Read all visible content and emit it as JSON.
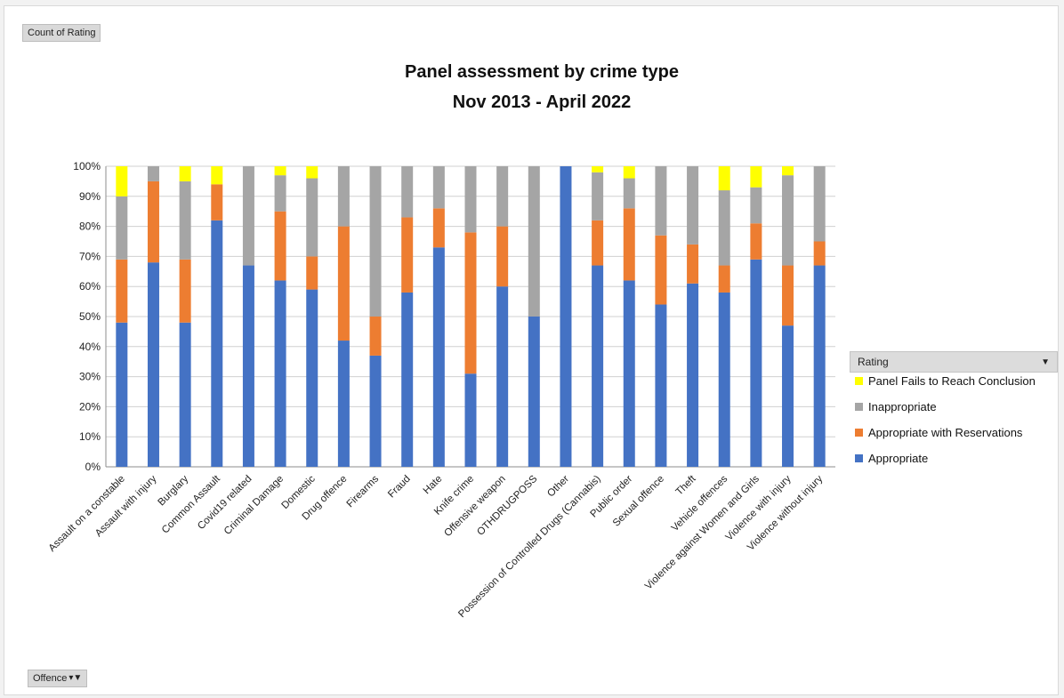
{
  "pivot": {
    "count_label": "Count of Rating",
    "offence_label": "Offence",
    "rating_label": "Rating",
    "filter_icon": "filter-icon",
    "dropdown_icon": "dropdown-arrow-icon"
  },
  "chart_data": {
    "type": "bar",
    "stacked": "percent",
    "title": "Panel assessment by crime type",
    "subtitle": "Nov 2013 - April 2022",
    "xlabel": "",
    "ylabel": "",
    "ylim": [
      0,
      100
    ],
    "yticks": [
      "0%",
      "10%",
      "20%",
      "30%",
      "40%",
      "50%",
      "60%",
      "70%",
      "80%",
      "90%",
      "100%"
    ],
    "grid": true,
    "legend_position": "right",
    "categories": [
      "Assault on a constable",
      "Assault with injury",
      "Burglary",
      "Common Assault",
      "Covid19 related",
      "Criminal Damage",
      "Domestic",
      "Drug offence",
      "Firearms",
      "Fraud",
      "Hate",
      "Knife crime",
      "Offensive weapon",
      "OTHDRUGPOSS",
      "Other",
      "Possession of Controlled Drugs (Cannabis)",
      "Public order",
      "Sexual offence",
      "Theft",
      "Vehicle offences",
      "Violence against Women and Girls",
      "Violence with injury",
      "Violence without injury"
    ],
    "series": [
      {
        "name": "Appropriate",
        "color": "#4472c4",
        "values": [
          48,
          68,
          48,
          82,
          67,
          62,
          59,
          42,
          37,
          58,
          73,
          31,
          60,
          50,
          100,
          67,
          62,
          54,
          61,
          58,
          69,
          47,
          67
        ]
      },
      {
        "name": "Appropriate with Reservations",
        "color": "#ed7d31",
        "values": [
          21,
          27,
          21,
          12,
          0,
          23,
          11,
          38,
          13,
          25,
          13,
          47,
          20,
          0,
          0,
          15,
          24,
          23,
          13,
          9,
          12,
          20,
          8
        ]
      },
      {
        "name": "Inappropriate",
        "color": "#a5a5a5",
        "values": [
          21,
          5,
          26,
          0,
          33,
          12,
          26,
          20,
          50,
          17,
          14,
          22,
          20,
          50,
          0,
          16,
          10,
          23,
          26,
          25,
          12,
          30,
          25
        ]
      },
      {
        "name": "Panel Fails to Reach Conclusion",
        "color": "#ffff00",
        "values": [
          10,
          0,
          5,
          6,
          0,
          3,
          4,
          0,
          0,
          0,
          0,
          0,
          0,
          0,
          0,
          2,
          4,
          0,
          0,
          8,
          7,
          3,
          0
        ]
      }
    ]
  }
}
